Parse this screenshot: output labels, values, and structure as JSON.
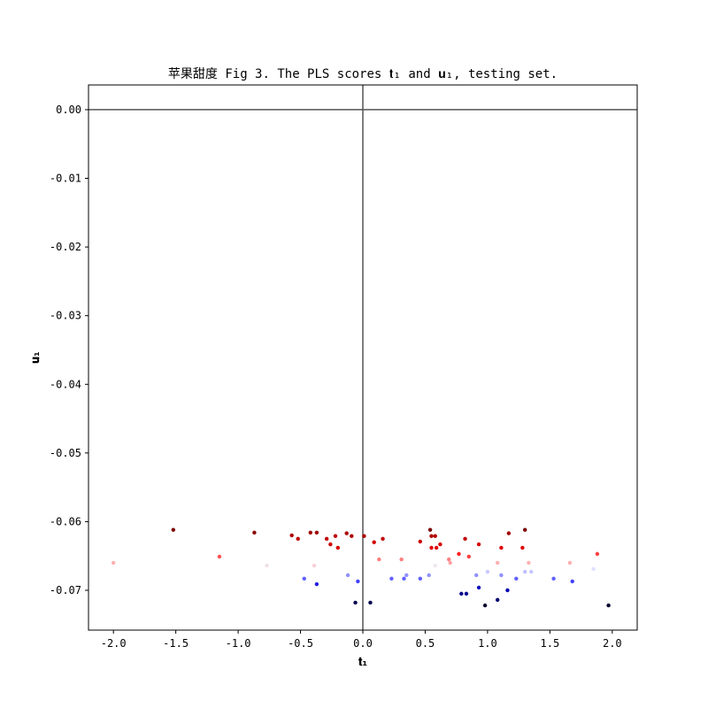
{
  "chart_data": {
    "type": "scatter",
    "title": "苹果甜度 Fig 3. The PLS scores 𝐭₁ and 𝐮₁, testing set.",
    "xlabel": "𝐭₁",
    "ylabel": "𝐮₁",
    "xlim": [
      -2.2,
      2.2
    ],
    "ylim": [
      -0.0758,
      0.0036
    ],
    "xticks": [
      "-2.0",
      "-1.5",
      "-1.0",
      "-0.5",
      "0.0",
      "0.5",
      "1.0",
      "1.5",
      "2.0"
    ],
    "xtick_values": [
      -2.0,
      -1.5,
      -1.0,
      -0.5,
      0.0,
      0.5,
      1.0,
      1.5,
      2.0
    ],
    "yticks": [
      "0.00",
      "-0.01",
      "-0.02",
      "-0.03",
      "-0.04",
      "-0.05",
      "-0.06",
      "-0.07"
    ],
    "ytick_values": [
      0.0,
      -0.01,
      -0.02,
      -0.03,
      -0.04,
      -0.05,
      -0.06,
      -0.07
    ],
    "reference_lines": {
      "x": 0,
      "y": 0,
      "color": "#555555"
    },
    "grid": false,
    "colormap": "seismic",
    "points": [
      {
        "x": -1.52,
        "y": -0.0612,
        "color": "#7a0000"
      },
      {
        "x": -0.87,
        "y": -0.0616,
        "color": "#8b0000"
      },
      {
        "x": -0.57,
        "y": -0.062,
        "color": "#b00000"
      },
      {
        "x": -0.52,
        "y": -0.0625,
        "color": "#c00000"
      },
      {
        "x": -0.42,
        "y": -0.0616,
        "color": "#a00000"
      },
      {
        "x": -0.37,
        "y": -0.0616,
        "color": "#a00000"
      },
      {
        "x": -0.29,
        "y": -0.0625,
        "color": "#c00000"
      },
      {
        "x": -0.26,
        "y": -0.0633,
        "color": "#d00000"
      },
      {
        "x": -0.22,
        "y": -0.0621,
        "color": "#c00000"
      },
      {
        "x": -0.2,
        "y": -0.0638,
        "color": "#d40000"
      },
      {
        "x": -0.13,
        "y": -0.0617,
        "color": "#a80000"
      },
      {
        "x": -0.09,
        "y": -0.0621,
        "color": "#b00000"
      },
      {
        "x": 0.01,
        "y": -0.0621,
        "color": "#b00000"
      },
      {
        "x": 0.09,
        "y": -0.063,
        "color": "#d00000"
      },
      {
        "x": 0.16,
        "y": -0.0625,
        "color": "#c00000"
      },
      {
        "x": 0.46,
        "y": -0.0629,
        "color": "#cc0000"
      },
      {
        "x": 0.54,
        "y": -0.0612,
        "color": "#7a0000"
      },
      {
        "x": 0.55,
        "y": -0.0621,
        "color": "#b00000"
      },
      {
        "x": 0.55,
        "y": -0.0638,
        "color": "#e00000"
      },
      {
        "x": 0.58,
        "y": -0.0621,
        "color": "#b00000"
      },
      {
        "x": 0.59,
        "y": -0.0638,
        "color": "#e00000"
      },
      {
        "x": 0.62,
        "y": -0.0633,
        "color": "#d80000"
      },
      {
        "x": 0.77,
        "y": -0.0647,
        "color": "#ff2020"
      },
      {
        "x": 0.82,
        "y": -0.0625,
        "color": "#c00000"
      },
      {
        "x": 0.85,
        "y": -0.0651,
        "color": "#ff4040"
      },
      {
        "x": 0.93,
        "y": -0.0633,
        "color": "#d80000"
      },
      {
        "x": 1.11,
        "y": -0.0638,
        "color": "#e00000"
      },
      {
        "x": 1.17,
        "y": -0.0617,
        "color": "#a00000"
      },
      {
        "x": 1.28,
        "y": -0.0638,
        "color": "#e00000"
      },
      {
        "x": 1.3,
        "y": -0.0612,
        "color": "#7a0000"
      },
      {
        "x": 1.88,
        "y": -0.0647,
        "color": "#ff4040"
      },
      {
        "x": -1.15,
        "y": -0.0651,
        "color": "#ff5050"
      },
      {
        "x": 0.13,
        "y": -0.0655,
        "color": "#ff8080"
      },
      {
        "x": 0.31,
        "y": -0.0655,
        "color": "#ff8080"
      },
      {
        "x": 0.69,
        "y": -0.0655,
        "color": "#ff8080"
      },
      {
        "x": 0.7,
        "y": -0.066,
        "color": "#ffa0a0"
      },
      {
        "x": -2.0,
        "y": -0.066,
        "color": "#ffb0b0"
      },
      {
        "x": 1.08,
        "y": -0.066,
        "color": "#ffb0b0"
      },
      {
        "x": 1.33,
        "y": -0.066,
        "color": "#ffb0b0"
      },
      {
        "x": 1.66,
        "y": -0.066,
        "color": "#ffb0b0"
      },
      {
        "x": -0.77,
        "y": -0.0664,
        "color": "#f0e0e8"
      },
      {
        "x": -0.39,
        "y": -0.0664,
        "color": "#f8d0d8"
      },
      {
        "x": 0.58,
        "y": -0.0664,
        "color": "#f0e8f0"
      },
      {
        "x": 1.0,
        "y": -0.0673,
        "color": "#c8c8ff"
      },
      {
        "x": 1.3,
        "y": -0.0673,
        "color": "#c0c0ff"
      },
      {
        "x": 1.35,
        "y": -0.0673,
        "color": "#c8c8ff"
      },
      {
        "x": 1.85,
        "y": -0.0669,
        "color": "#e0e0ff"
      },
      {
        "x": -0.12,
        "y": -0.0678,
        "color": "#9090ff"
      },
      {
        "x": 0.35,
        "y": -0.0678,
        "color": "#9090ff"
      },
      {
        "x": 0.53,
        "y": -0.0678,
        "color": "#9090ff"
      },
      {
        "x": 0.91,
        "y": -0.0678,
        "color": "#9090ff"
      },
      {
        "x": 1.11,
        "y": -0.0678,
        "color": "#9090ff"
      },
      {
        "x": -0.47,
        "y": -0.0683,
        "color": "#6060ff"
      },
      {
        "x": 0.23,
        "y": -0.0683,
        "color": "#6060ff"
      },
      {
        "x": 0.33,
        "y": -0.0683,
        "color": "#6060ff"
      },
      {
        "x": 0.46,
        "y": -0.0683,
        "color": "#6060ff"
      },
      {
        "x": 1.23,
        "y": -0.0683,
        "color": "#6060ff"
      },
      {
        "x": 1.53,
        "y": -0.0683,
        "color": "#6060ff"
      },
      {
        "x": -0.04,
        "y": -0.0687,
        "color": "#4040ff"
      },
      {
        "x": 1.68,
        "y": -0.0687,
        "color": "#4040ff"
      },
      {
        "x": -0.37,
        "y": -0.0691,
        "color": "#2020e0"
      },
      {
        "x": 0.93,
        "y": -0.0696,
        "color": "#1010c0"
      },
      {
        "x": 1.16,
        "y": -0.07,
        "color": "#0000b0"
      },
      {
        "x": 0.79,
        "y": -0.0705,
        "color": "#000090"
      },
      {
        "x": 0.83,
        "y": -0.0705,
        "color": "#000090"
      },
      {
        "x": 1.08,
        "y": -0.0714,
        "color": "#000070"
      },
      {
        "x": -0.06,
        "y": -0.0718,
        "color": "#000050"
      },
      {
        "x": 0.06,
        "y": -0.0718,
        "color": "#000050"
      },
      {
        "x": 0.98,
        "y": -0.0722,
        "color": "#000030"
      },
      {
        "x": 1.97,
        "y": -0.0722,
        "color": "#000030"
      }
    ]
  }
}
